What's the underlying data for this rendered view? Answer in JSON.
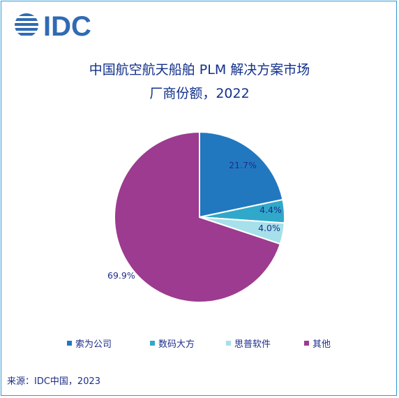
{
  "logo_text": "IDC",
  "title": {
    "line1": "中国航空航天船舶 PLM 解决方案市场",
    "line2": "厂商份额，2022"
  },
  "chart_data": {
    "type": "pie",
    "title": "中国航空航天船舶 PLM 解决方案市场 厂商份额，2022",
    "slices": [
      {
        "label": "索为公司",
        "value": 21.7,
        "value_label": "21.7%",
        "color": "#2278bf"
      },
      {
        "label": "数码大方",
        "value": 4.4,
        "value_label": "4.4%",
        "color": "#30a8c9"
      },
      {
        "label": "思普软件",
        "value": 4.0,
        "value_label": "4.0%",
        "color": "#a6e0ea"
      },
      {
        "label": "其他",
        "value": 69.9,
        "value_label": "69.9%",
        "color": "#9c3b8f"
      }
    ],
    "legend_position": "bottom",
    "start_angle": "12-o-clock clockwise"
  },
  "source": "来源：IDC中国，2023",
  "colors": {
    "frame": "#2f9ad6",
    "text": "#12308a",
    "logo": "#2f6bb3"
  }
}
